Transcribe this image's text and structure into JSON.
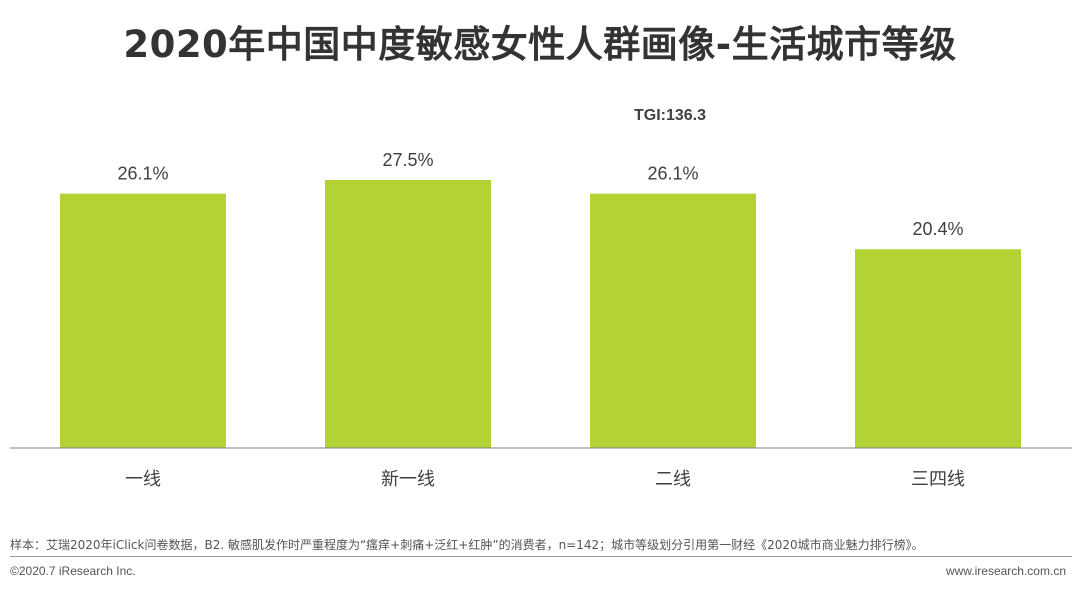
{
  "chart_data": {
    "type": "bar",
    "title": "2020年中国中度敏感女性人群画像-生活城市等级",
    "categories": [
      "一线",
      "新一线",
      "二线",
      "三四线"
    ],
    "values": [
      26.1,
      27.5,
      26.1,
      20.4
    ],
    "value_labels": [
      "26.1%",
      "27.5%",
      "26.1%",
      "20.4%"
    ],
    "annotation": "TGI:136.3",
    "ylim": [
      0,
      30
    ],
    "grid": false,
    "bar_color": "#B3D335"
  },
  "footer": {
    "note": "样本：艾瑞2020年iClick问卷数据，B2. 敏感肌发作时严重程度为“瘙痒+刺痛+泛红+红肿”的消费者，n=142；城市等级划分引用第一财经《2020城市商业魅力排行榜》。",
    "copyright": "©2020.7 iResearch Inc.",
    "website": "www.iresearch.com.cn"
  }
}
